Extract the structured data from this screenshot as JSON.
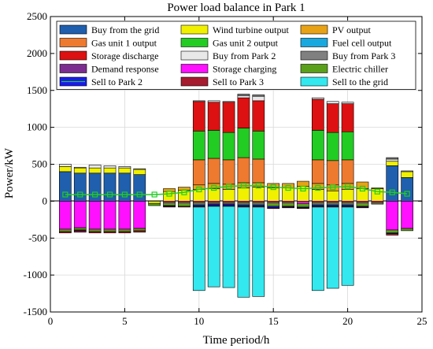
{
  "chart_data": {
    "type": "bar",
    "stacked": true,
    "title": "Power load balance in Park 1",
    "xlabel": "Time period/h",
    "ylabel": "Power/kW",
    "xlim": [
      0,
      25
    ],
    "ylim": [
      -1500,
      2500
    ],
    "xticks": [
      0,
      5,
      10,
      15,
      20,
      25
    ],
    "yticks": [
      -1500,
      -1000,
      -500,
      0,
      500,
      1000,
      1500,
      2000,
      2500
    ],
    "grid": true,
    "legend_position": "top (inside plot, 3 columns)",
    "x": [
      1,
      2,
      3,
      4,
      5,
      6,
      7,
      8,
      9,
      10,
      11,
      12,
      13,
      14,
      15,
      16,
      17,
      18,
      19,
      20,
      21,
      22,
      23,
      24
    ],
    "series": [
      {
        "name": "Buy from the grid",
        "color": "#1f5fae",
        "values": [
          400,
          380,
          380,
          380,
          380,
          360,
          0,
          0,
          0,
          0,
          0,
          0,
          0,
          0,
          0,
          0,
          0,
          0,
          0,
          0,
          0,
          0,
          480,
          320
        ]
      },
      {
        "name": "Wind turbine output",
        "color": "#f0f000",
        "values": [
          70,
          70,
          70,
          70,
          70,
          70,
          -30,
          130,
          150,
          160,
          170,
          160,
          180,
          190,
          180,
          180,
          200,
          160,
          140,
          160,
          170,
          170,
          60,
          80
        ]
      },
      {
        "name": "PV output",
        "color": "#e8a215",
        "values": [
          0,
          0,
          0,
          0,
          0,
          0,
          0,
          40,
          40,
          60,
          70,
          70,
          70,
          60,
          60,
          60,
          70,
          80,
          80,
          80,
          90,
          10,
          0,
          0
        ]
      },
      {
        "name": "Gas unit 1 output",
        "color": "#ee7a2f",
        "values": [
          0,
          0,
          0,
          0,
          0,
          0,
          0,
          0,
          0,
          340,
          340,
          330,
          340,
          320,
          0,
          0,
          0,
          320,
          330,
          320,
          0,
          0,
          0,
          0
        ]
      },
      {
        "name": "Gas unit 2 output",
        "color": "#22cc22",
        "values": [
          0,
          0,
          0,
          0,
          0,
          0,
          0,
          0,
          0,
          390,
          380,
          370,
          400,
          380,
          0,
          0,
          0,
          400,
          380,
          380,
          0,
          0,
          0,
          0
        ]
      },
      {
        "name": "Fuel cell output",
        "color": "#18a8e0",
        "values": [
          0,
          0,
          0,
          0,
          0,
          0,
          0,
          0,
          0,
          0,
          0,
          0,
          0,
          0,
          0,
          0,
          0,
          0,
          0,
          0,
          0,
          0,
          0,
          0
        ]
      },
      {
        "name": "Storage discharge",
        "color": "#dd1111",
        "values": [
          0,
          0,
          0,
          0,
          0,
          0,
          0,
          0,
          0,
          400,
          380,
          410,
          410,
          410,
          0,
          0,
          0,
          420,
          390,
          380,
          0,
          0,
          0,
          0
        ]
      },
      {
        "name": "Buy from Park 2",
        "color": "#e8e8e8",
        "values": [
          30,
          10,
          40,
          30,
          20,
          10,
          0,
          0,
          0,
          10,
          20,
          10,
          30,
          60,
          0,
          0,
          0,
          20,
          30,
          20,
          0,
          0,
          30,
          10
        ]
      },
      {
        "name": "Buy from Park 3",
        "color": "#808080",
        "values": [
          0,
          0,
          0,
          0,
          0,
          0,
          0,
          0,
          0,
          0,
          0,
          0,
          20,
          20,
          0,
          0,
          0,
          0,
          0,
          0,
          0,
          0,
          20,
          0
        ]
      },
      {
        "name": "Demand response",
        "color": "#7b2d90",
        "values": [
          0,
          0,
          0,
          0,
          0,
          0,
          0,
          0,
          0,
          0,
          0,
          0,
          0,
          0,
          0,
          0,
          0,
          0,
          0,
          0,
          0,
          0,
          0,
          0
        ]
      },
      {
        "name": "Storage charging",
        "color": "#ff10ff",
        "values": [
          -380,
          -360,
          -380,
          -380,
          -380,
          -370,
          0,
          -20,
          -20,
          -20,
          -20,
          -20,
          -20,
          -20,
          -20,
          -20,
          -30,
          -20,
          -20,
          -20,
          -20,
          -20,
          -390,
          -370
        ]
      },
      {
        "name": "Electric chiller",
        "color": "#5aa01a",
        "values": [
          -30,
          -30,
          -30,
          -30,
          -30,
          -30,
          -30,
          -40,
          -50,
          -30,
          -20,
          -20,
          -30,
          -30,
          -50,
          -50,
          -50,
          -30,
          -30,
          -30,
          -50,
          -20,
          -40,
          -30
        ]
      },
      {
        "name": "Sell to Park 2",
        "color": "#1a1aee",
        "values": [
          0,
          -10,
          0,
          0,
          0,
          0,
          0,
          -10,
          0,
          -20,
          -20,
          -20,
          -20,
          -20,
          -20,
          -10,
          -10,
          -20,
          -20,
          -20,
          -10,
          0,
          -10,
          0
        ]
      },
      {
        "name": "Sell to Park 3",
        "color": "#a61b2e",
        "values": [
          -20,
          -20,
          -20,
          -20,
          -20,
          -20,
          0,
          -10,
          -10,
          -10,
          -10,
          -10,
          -10,
          -10,
          -10,
          -10,
          -10,
          -10,
          -10,
          -10,
          -10,
          0,
          -20,
          0
        ]
      },
      {
        "name": "Sell to the grid",
        "color": "#33e8ee",
        "values": [
          0,
          0,
          0,
          0,
          0,
          0,
          0,
          0,
          0,
          -1130,
          -1090,
          -1100,
          -1220,
          -1210,
          0,
          0,
          0,
          -1130,
          -1100,
          -1060,
          0,
          0,
          0,
          0
        ]
      }
    ],
    "line": {
      "color": "#22cc22",
      "values": [
        90,
        90,
        90,
        90,
        90,
        90,
        90,
        100,
        120,
        160,
        180,
        200,
        210,
        210,
        190,
        180,
        170,
        180,
        190,
        200,
        170,
        130,
        120,
        100
      ]
    }
  }
}
